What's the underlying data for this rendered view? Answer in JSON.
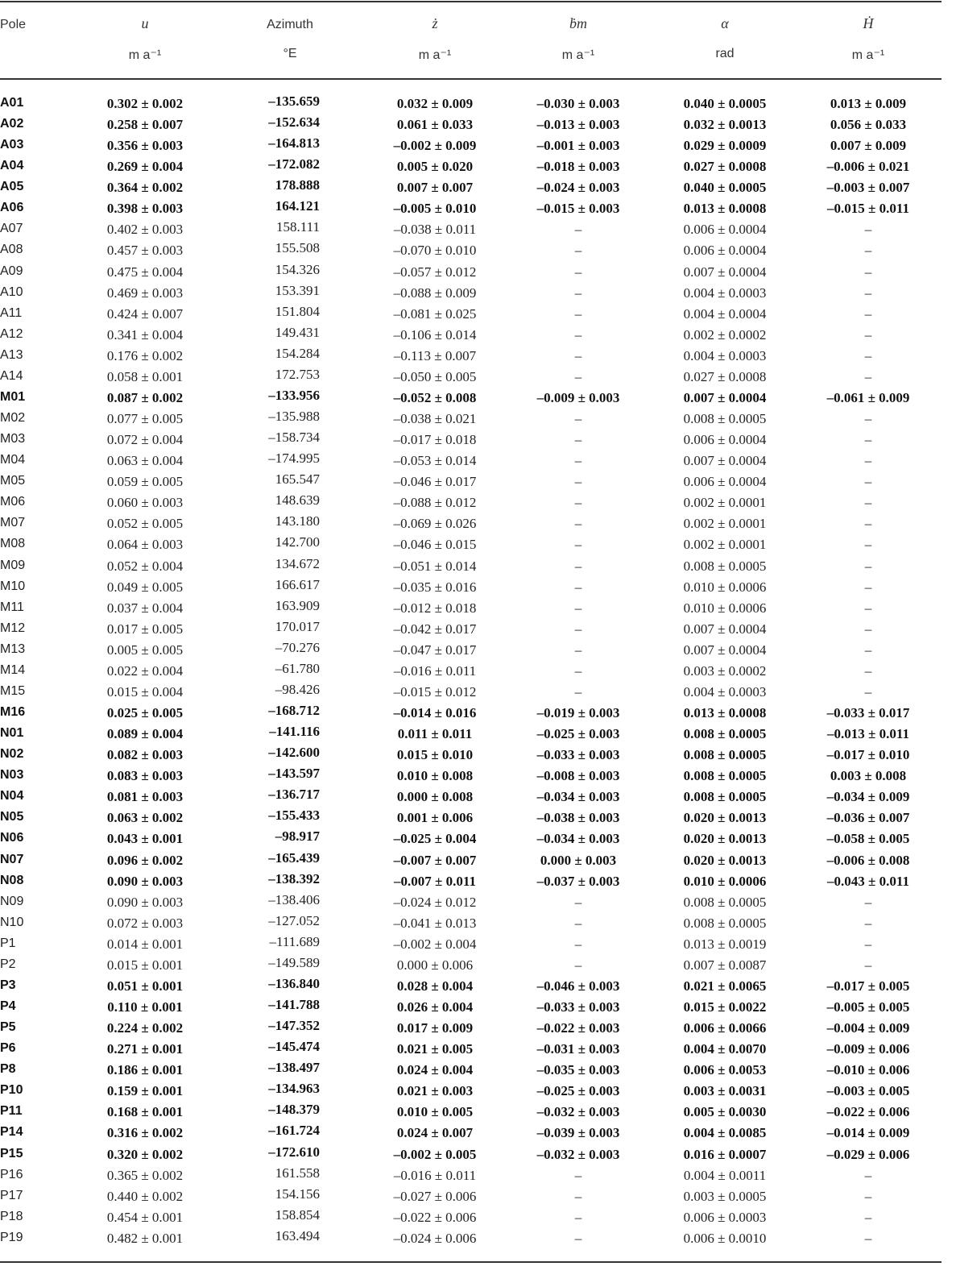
{
  "headers": [
    {
      "symbol": "Pole",
      "unit": ""
    },
    {
      "symbol": "u",
      "unit": "m a⁻¹"
    },
    {
      "symbol": "Azimuth",
      "unit": "°E"
    },
    {
      "symbol": "ż",
      "unit": "m a⁻¹"
    },
    {
      "symbol": "ḃm",
      "unit": "m a⁻¹"
    },
    {
      "symbol": "α",
      "unit": "rad"
    },
    {
      "symbol": "Ḣ",
      "unit": "m a⁻¹"
    }
  ],
  "rows": [
    {
      "bold": true,
      "cells": [
        "A01",
        "0.302 ± 0.002",
        "–135.659",
        "0.032 ± 0.009",
        "–0.030 ± 0.003",
        "0.040 ± 0.0005",
        "0.013 ± 0.009"
      ]
    },
    {
      "bold": true,
      "cells": [
        "A02",
        "0.258 ± 0.007",
        "–152.634",
        "0.061 ± 0.033",
        "–0.013 ± 0.003",
        "0.032 ± 0.0013",
        "0.056 ± 0.033"
      ]
    },
    {
      "bold": true,
      "cells": [
        "A03",
        "0.356 ± 0.003",
        "–164.813",
        "–0.002 ± 0.009",
        "–0.001 ± 0.003",
        "0.029 ± 0.0009",
        "0.007 ± 0.009"
      ]
    },
    {
      "bold": true,
      "cells": [
        "A04",
        "0.269 ± 0.004",
        "–172.082",
        "0.005 ± 0.020",
        "–0.018 ± 0.003",
        "0.027 ± 0.0008",
        "–0.006 ± 0.021"
      ]
    },
    {
      "bold": true,
      "cells": [
        "A05",
        "0.364 ± 0.002",
        "178.888",
        "0.007 ± 0.007",
        "–0.024 ± 0.003",
        "0.040 ± 0.0005",
        "–0.003 ± 0.007"
      ]
    },
    {
      "bold": true,
      "cells": [
        "A06",
        "0.398 ± 0.003",
        "164.121",
        "–0.005 ± 0.010",
        "–0.015 ± 0.003",
        "0.013 ± 0.0008",
        "–0.015 ± 0.011"
      ]
    },
    {
      "bold": false,
      "cells": [
        "A07",
        "0.402 ± 0.003",
        "158.111",
        "–0.038 ± 0.011",
        "–",
        "0.006 ± 0.0004",
        "–"
      ]
    },
    {
      "bold": false,
      "cells": [
        "A08",
        "0.457 ± 0.003",
        "155.508",
        "–0.070 ± 0.010",
        "–",
        "0.006 ± 0.0004",
        "–"
      ]
    },
    {
      "bold": false,
      "cells": [
        "A09",
        "0.475 ± 0.004",
        "154.326",
        "–0.057 ± 0.012",
        "–",
        "0.007 ± 0.0004",
        "–"
      ]
    },
    {
      "bold": false,
      "cells": [
        "A10",
        "0.469 ± 0.003",
        "153.391",
        "–0.088 ± 0.009",
        "–",
        "0.004 ± 0.0003",
        "–"
      ]
    },
    {
      "bold": false,
      "cells": [
        "A11",
        "0.424 ± 0.007",
        "151.804",
        "–0.081 ± 0.025",
        "–",
        "0.004 ± 0.0004",
        "–"
      ]
    },
    {
      "bold": false,
      "cells": [
        "A12",
        "0.341 ± 0.004",
        "149.431",
        "–0.106 ± 0.014",
        "–",
        "0.002 ± 0.0002",
        "–"
      ]
    },
    {
      "bold": false,
      "cells": [
        "A13",
        "0.176 ± 0.002",
        "154.284",
        "–0.113 ± 0.007",
        "–",
        "0.004 ± 0.0003",
        "–"
      ]
    },
    {
      "bold": false,
      "cells": [
        "A14",
        "0.058 ± 0.001",
        "172.753",
        "–0.050 ± 0.005",
        "–",
        "0.027 ± 0.0008",
        "–"
      ]
    },
    {
      "bold": true,
      "cells": [
        "M01",
        "0.087 ± 0.002",
        "–133.956",
        "–0.052 ± 0.008",
        "–0.009 ± 0.003",
        "0.007 ± 0.0004",
        "–0.061 ± 0.009"
      ]
    },
    {
      "bold": false,
      "cells": [
        "M02",
        "0.077 ± 0.005",
        "–135.988",
        "–0.038 ± 0.021",
        "–",
        "0.008 ± 0.0005",
        "–"
      ]
    },
    {
      "bold": false,
      "cells": [
        "M03",
        "0.072 ± 0.004",
        "–158.734",
        "–0.017 ± 0.018",
        "–",
        "0.006 ± 0.0004",
        "–"
      ]
    },
    {
      "bold": false,
      "cells": [
        "M04",
        "0.063 ± 0.004",
        "–174.995",
        "–0.053 ± 0.014",
        "–",
        "0.007 ± 0.0004",
        "–"
      ]
    },
    {
      "bold": false,
      "cells": [
        "M05",
        "0.059 ± 0.005",
        "165.547",
        "–0.046 ± 0.017",
        "–",
        "0.006 ± 0.0004",
        "–"
      ]
    },
    {
      "bold": false,
      "cells": [
        "M06",
        "0.060 ± 0.003",
        "148.639",
        "–0.088 ± 0.012",
        "–",
        "0.002 ± 0.0001",
        "–"
      ]
    },
    {
      "bold": false,
      "cells": [
        "M07",
        "0.052 ± 0.005",
        "143.180",
        "–0.069 ± 0.026",
        "–",
        "0.002 ± 0.0001",
        "–"
      ]
    },
    {
      "bold": false,
      "cells": [
        "M08",
        "0.064 ± 0.003",
        "142.700",
        "–0.046 ± 0.015",
        "–",
        "0.002 ± 0.0001",
        "–"
      ]
    },
    {
      "bold": false,
      "cells": [
        "M09",
        "0.052 ± 0.004",
        "134.672",
        "–0.051 ± 0.014",
        "–",
        "0.008 ± 0.0005",
        "–"
      ]
    },
    {
      "bold": false,
      "cells": [
        "M10",
        "0.049 ± 0.005",
        "166.617",
        "–0.035 ± 0.016",
        "–",
        "0.010 ± 0.0006",
        "–"
      ]
    },
    {
      "bold": false,
      "cells": [
        "M11",
        "0.037 ± 0.004",
        "163.909",
        "–0.012 ± 0.018",
        "–",
        "0.010 ± 0.0006",
        "–"
      ]
    },
    {
      "bold": false,
      "cells": [
        "M12",
        "0.017 ± 0.005",
        "170.017",
        "–0.042 ± 0.017",
        "–",
        "0.007 ± 0.0004",
        "–"
      ]
    },
    {
      "bold": false,
      "cells": [
        "M13",
        "0.005 ± 0.005",
        "–70.276",
        "–0.047 ± 0.017",
        "–",
        "0.007 ± 0.0004",
        "–"
      ]
    },
    {
      "bold": false,
      "cells": [
        "M14",
        "0.022 ± 0.004",
        "–61.780",
        "–0.016 ± 0.011",
        "–",
        "0.003 ± 0.0002",
        "–"
      ]
    },
    {
      "bold": false,
      "cells": [
        "M15",
        "0.015 ± 0.004",
        "–98.426",
        "–0.015 ± 0.012",
        "–",
        "0.004 ± 0.0003",
        "–"
      ]
    },
    {
      "bold": true,
      "cells": [
        "M16",
        "0.025 ± 0.005",
        "–168.712",
        "–0.014 ± 0.016",
        "–0.019 ± 0.003",
        "0.013 ± 0.0008",
        "–0.033 ± 0.017"
      ]
    },
    {
      "bold": true,
      "cells": [
        "N01",
        "0.089 ± 0.004",
        "–141.116",
        "0.011 ± 0.011",
        "–0.025 ± 0.003",
        "0.008 ± 0.0005",
        "–0.013 ± 0.011"
      ]
    },
    {
      "bold": true,
      "cells": [
        "N02",
        "0.082 ± 0.003",
        "–142.600",
        "0.015 ± 0.010",
        "–0.033 ± 0.003",
        "0.008 ± 0.0005",
        "–0.017 ± 0.010"
      ]
    },
    {
      "bold": true,
      "cells": [
        "N03",
        "0.083 ± 0.003",
        "–143.597",
        "0.010 ± 0.008",
        "–0.008 ± 0.003",
        "0.008 ± 0.0005",
        "0.003 ± 0.008"
      ]
    },
    {
      "bold": true,
      "cells": [
        "N04",
        "0.081 ± 0.003",
        "–136.717",
        "0.000 ± 0.008",
        "–0.034 ± 0.003",
        "0.008 ± 0.0005",
        "–0.034 ± 0.009"
      ]
    },
    {
      "bold": true,
      "cells": [
        "N05",
        "0.063 ± 0.002",
        "–155.433",
        "0.001 ± 0.006",
        "–0.038 ± 0.003",
        "0.020 ± 0.0013",
        "–0.036 ± 0.007"
      ]
    },
    {
      "bold": true,
      "cells": [
        "N06",
        "0.043 ± 0.001",
        "–98.917",
        "–0.025 ± 0.004",
        "–0.034 ± 0.003",
        "0.020 ± 0.0013",
        "–0.058 ± 0.005"
      ]
    },
    {
      "bold": true,
      "cells": [
        "N07",
        "0.096 ± 0.002",
        "–165.439",
        "–0.007 ± 0.007",
        "0.000 ± 0.003",
        "0.020 ± 0.0013",
        "–0.006 ± 0.008"
      ]
    },
    {
      "bold": true,
      "cells": [
        "N08",
        "0.090 ± 0.003",
        "–138.392",
        "–0.007 ± 0.011",
        "–0.037 ± 0.003",
        "0.010 ± 0.0006",
        "–0.043 ± 0.011"
      ]
    },
    {
      "bold": false,
      "cells": [
        "N09",
        "0.090 ± 0.003",
        "–138.406",
        "–0.024 ± 0.012",
        "–",
        "0.008 ± 0.0005",
        "–"
      ]
    },
    {
      "bold": false,
      "cells": [
        "N10",
        "0.072 ± 0.003",
        "–127.052",
        "–0.041 ± 0.013",
        "–",
        "0.008 ± 0.0005",
        "–"
      ]
    },
    {
      "bold": false,
      "cells": [
        "P1",
        "0.014 ± 0.001",
        "–111.689",
        "–0.002 ± 0.004",
        "–",
        "0.013 ± 0.0019",
        "–"
      ]
    },
    {
      "bold": false,
      "cells": [
        "P2",
        "0.015 ± 0.001",
        "–149.589",
        "0.000 ± 0.006",
        "–",
        "0.007 ± 0.0087",
        "–"
      ]
    },
    {
      "bold": true,
      "cells": [
        "P3",
        "0.051 ± 0.001",
        "–136.840",
        "0.028 ± 0.004",
        "–0.046 ± 0.003",
        "0.021 ± 0.0065",
        "–0.017 ± 0.005"
      ]
    },
    {
      "bold": true,
      "cells": [
        "P4",
        "0.110 ± 0.001",
        "–141.788",
        "0.026 ± 0.004",
        "–0.033 ± 0.003",
        "0.015 ± 0.0022",
        "–0.005 ± 0.005"
      ]
    },
    {
      "bold": true,
      "cells": [
        "P5",
        "0.224 ± 0.002",
        "–147.352",
        "0.017 ± 0.009",
        "–0.022 ± 0.003",
        "0.006 ± 0.0066",
        "–0.004 ± 0.009"
      ]
    },
    {
      "bold": true,
      "cells": [
        "P6",
        "0.271 ± 0.001",
        "–145.474",
        "0.021 ± 0.005",
        "–0.031 ± 0.003",
        "0.004 ± 0.0070",
        "–0.009 ± 0.006"
      ]
    },
    {
      "bold": true,
      "cells": [
        "P8",
        "0.186 ± 0.001",
        "–138.497",
        "0.024 ± 0.004",
        "–0.035 ± 0.003",
        "0.006 ± 0.0053",
        "–0.010 ± 0.006"
      ]
    },
    {
      "bold": true,
      "cells": [
        "P10",
        "0.159 ± 0.001",
        "–134.963",
        "0.021 ± 0.003",
        "–0.025 ± 0.003",
        "0.003 ± 0.0031",
        "–0.003 ± 0.005"
      ]
    },
    {
      "bold": true,
      "cells": [
        "P11",
        "0.168 ± 0.001",
        "–148.379",
        "0.010 ± 0.005",
        "–0.032 ± 0.003",
        "0.005 ± 0.0030",
        "–0.022 ± 0.006"
      ]
    },
    {
      "bold": true,
      "cells": [
        "P14",
        "0.316 ± 0.002",
        "–161.724",
        "0.024 ± 0.007",
        "–0.039 ± 0.003",
        "0.004 ± 0.0085",
        "–0.014 ± 0.009"
      ]
    },
    {
      "bold": true,
      "cells": [
        "P15",
        "0.320 ± 0.002",
        "–172.610",
        "–0.002 ± 0.005",
        "–0.032 ± 0.003",
        "0.016 ± 0.0007",
        "–0.029 ± 0.006"
      ]
    },
    {
      "bold": false,
      "cells": [
        "P16",
        "0.365 ± 0.002",
        "161.558",
        "–0.016 ± 0.011",
        "–",
        "0.004 ± 0.0011",
        "–"
      ]
    },
    {
      "bold": false,
      "cells": [
        "P17",
        "0.440 ± 0.002",
        "154.156",
        "–0.027 ± 0.006",
        "–",
        "0.003 ± 0.0005",
        "–"
      ]
    },
    {
      "bold": false,
      "cells": [
        "P18",
        "0.454 ± 0.001",
        "158.854",
        "–0.022 ± 0.006",
        "–",
        "0.006 ± 0.0003",
        "–"
      ]
    },
    {
      "bold": false,
      "cells": [
        "P19",
        "0.482 ± 0.001",
        "163.494",
        "–0.024 ± 0.006",
        "–",
        "0.006 ± 0.0010",
        "–"
      ]
    }
  ]
}
